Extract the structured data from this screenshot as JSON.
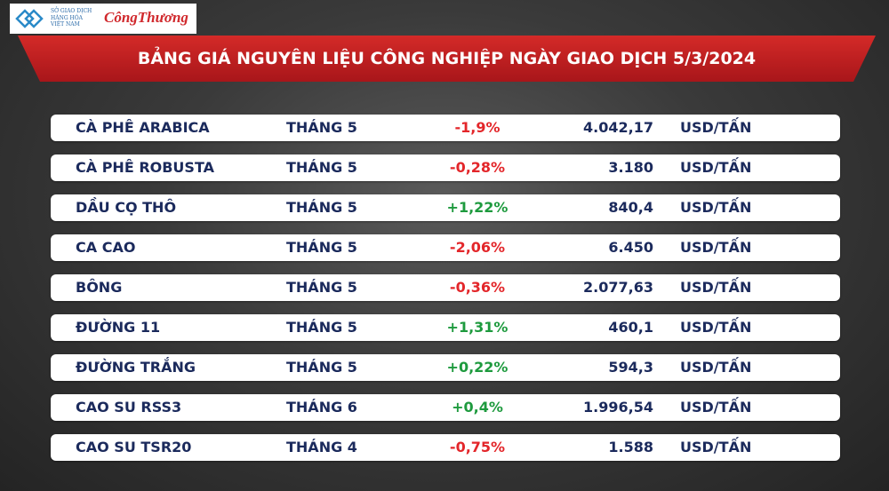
{
  "header": {
    "logo_exchange": [
      "SỞ GIAO DỊCH",
      "HÀNG HÓA",
      "VIỆT NAM"
    ],
    "logo_paper": "CôngThương",
    "title": "BẢNG GIÁ NGUYÊN LIỆU CÔNG NGHIỆP NGÀY GIAO DỊCH 5/3/2024"
  },
  "table": {
    "rows": [
      [
        "CÀ PHÊ ARABICA",
        "THÁNG 5",
        "-1,9%",
        "4.042,17",
        "USD/TẤN"
      ],
      [
        "CÀ PHÊ ROBUSTA",
        "THÁNG 5",
        "-0,28%",
        "3.180",
        "USD/TẤN"
      ],
      [
        "DẦU CỌ THÔ",
        "THÁNG 5",
        "+1,22%",
        "840,4",
        "USD/TẤN"
      ],
      [
        "CA CAO",
        "THÁNG 5",
        "-2,06%",
        "6.450",
        "USD/TẤN"
      ],
      [
        "BÔNG",
        "THÁNG 5",
        "-0,36%",
        "2.077,63",
        "USD/TẤN"
      ],
      [
        "ĐƯỜNG 11",
        "THÁNG 5",
        "+1,31%",
        "460,1",
        "USD/TẤN"
      ],
      [
        "ĐƯỜNG TRẮNG",
        "THÁNG 5",
        "+0,22%",
        "594,3",
        "USD/TẤN"
      ],
      [
        "CAO SU RSS3",
        "THÁNG 6",
        "+0,4%",
        "1.996,54",
        "USD/TẤN"
      ],
      [
        "CAO SU TSR20",
        "THÁNG 4",
        "-0,75%",
        "1.588",
        "USD/TẤN"
      ]
    ]
  }
}
